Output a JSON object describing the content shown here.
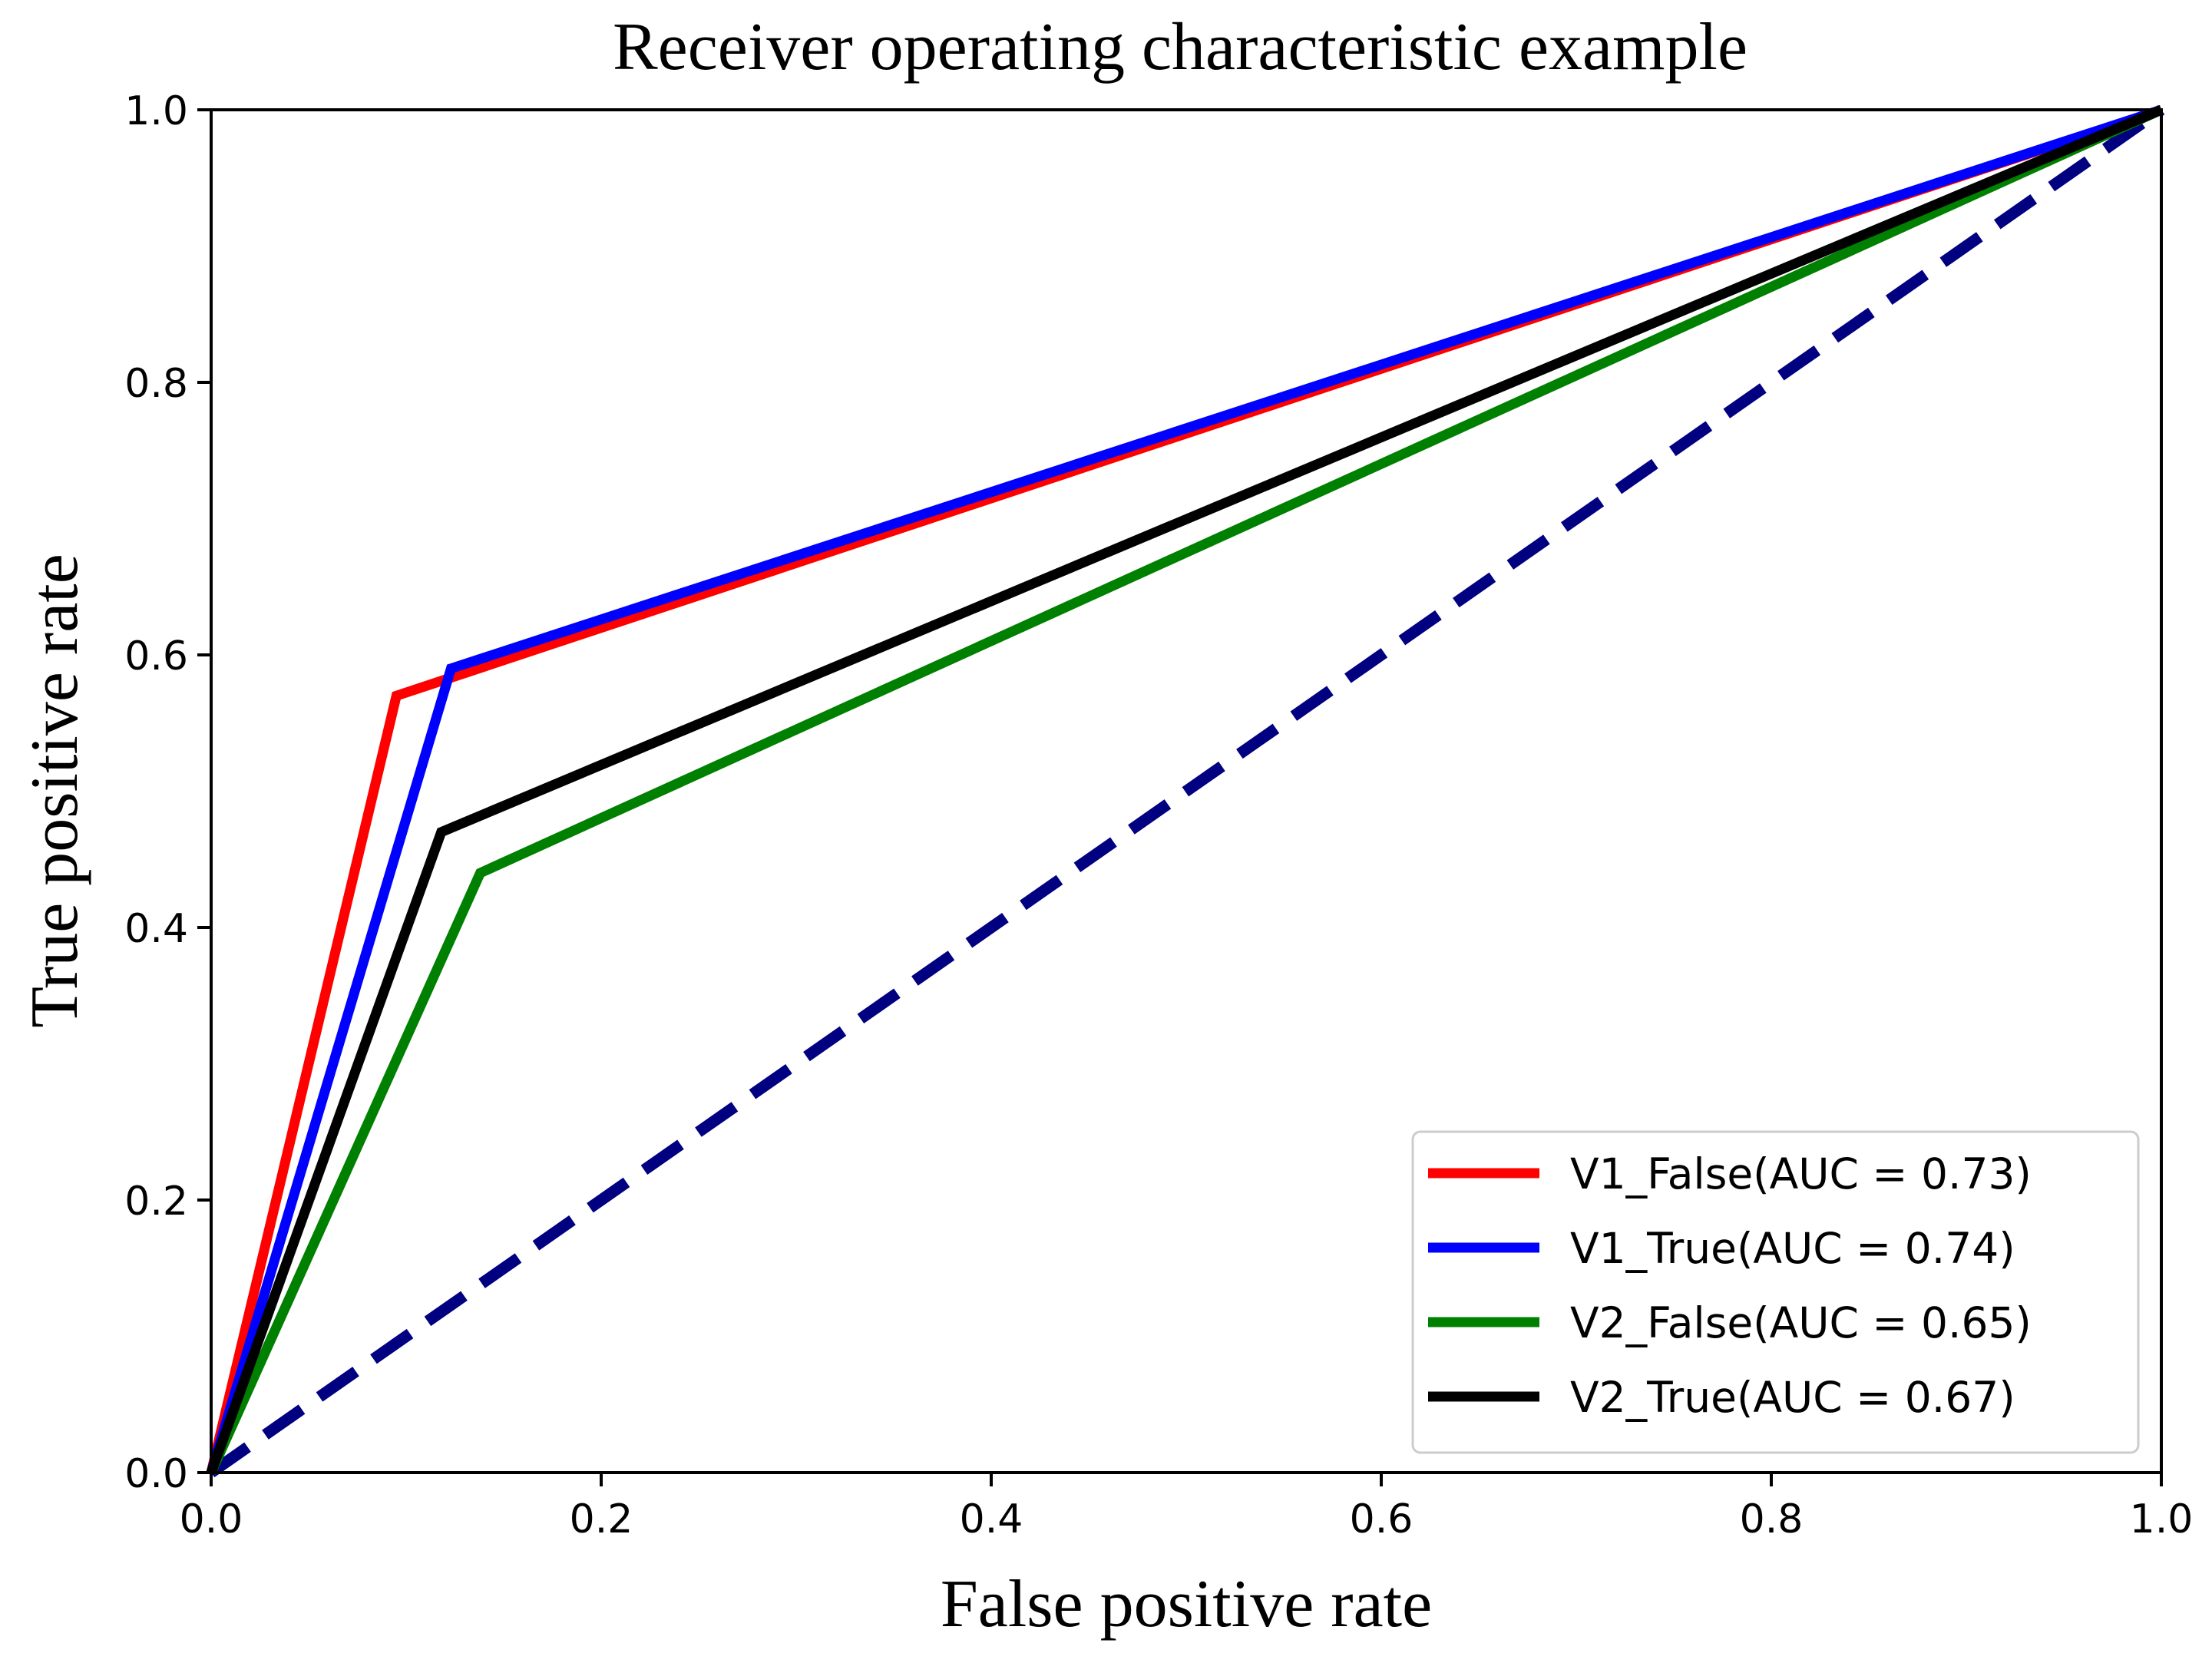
{
  "chart_data": {
    "type": "line",
    "title": "Receiver operating characteristic example",
    "xlabel": "False positive rate",
    "ylabel": "True positive rate",
    "xlim": [
      0.0,
      1.0
    ],
    "ylim": [
      0.0,
      1.0
    ],
    "x_ticks": [
      "0.0",
      "0.2",
      "0.4",
      "0.6",
      "0.8",
      "1.0"
    ],
    "y_ticks": [
      "0.0",
      "0.2",
      "0.4",
      "0.6",
      "0.8",
      "1.0"
    ],
    "grid": false,
    "legend_position": "bottom-right",
    "series": [
      {
        "name": "V1_False(AUC = 0.73)",
        "color": "#ff0000",
        "x": [
          0.0,
          0.095,
          1.0
        ],
        "y": [
          0.0,
          0.57,
          1.0
        ]
      },
      {
        "name": "V1_True(AUC = 0.74)",
        "color": "#0000ff",
        "x": [
          0.0,
          0.123,
          1.0
        ],
        "y": [
          0.0,
          0.59,
          1.0
        ]
      },
      {
        "name": "V2_False(AUC = 0.65)",
        "color": "#008000",
        "x": [
          0.0,
          0.138,
          1.0
        ],
        "y": [
          0.0,
          0.44,
          1.0
        ]
      },
      {
        "name": "V2_True(AUC = 0.67)",
        "color": "#000000",
        "x": [
          0.0,
          0.118,
          1.0
        ],
        "y": [
          0.0,
          0.47,
          1.0
        ]
      }
    ],
    "reference_line": {
      "style": "dashed",
      "color": "#000080",
      "x": [
        0.0,
        1.0
      ],
      "y": [
        0.0,
        1.0
      ]
    }
  }
}
